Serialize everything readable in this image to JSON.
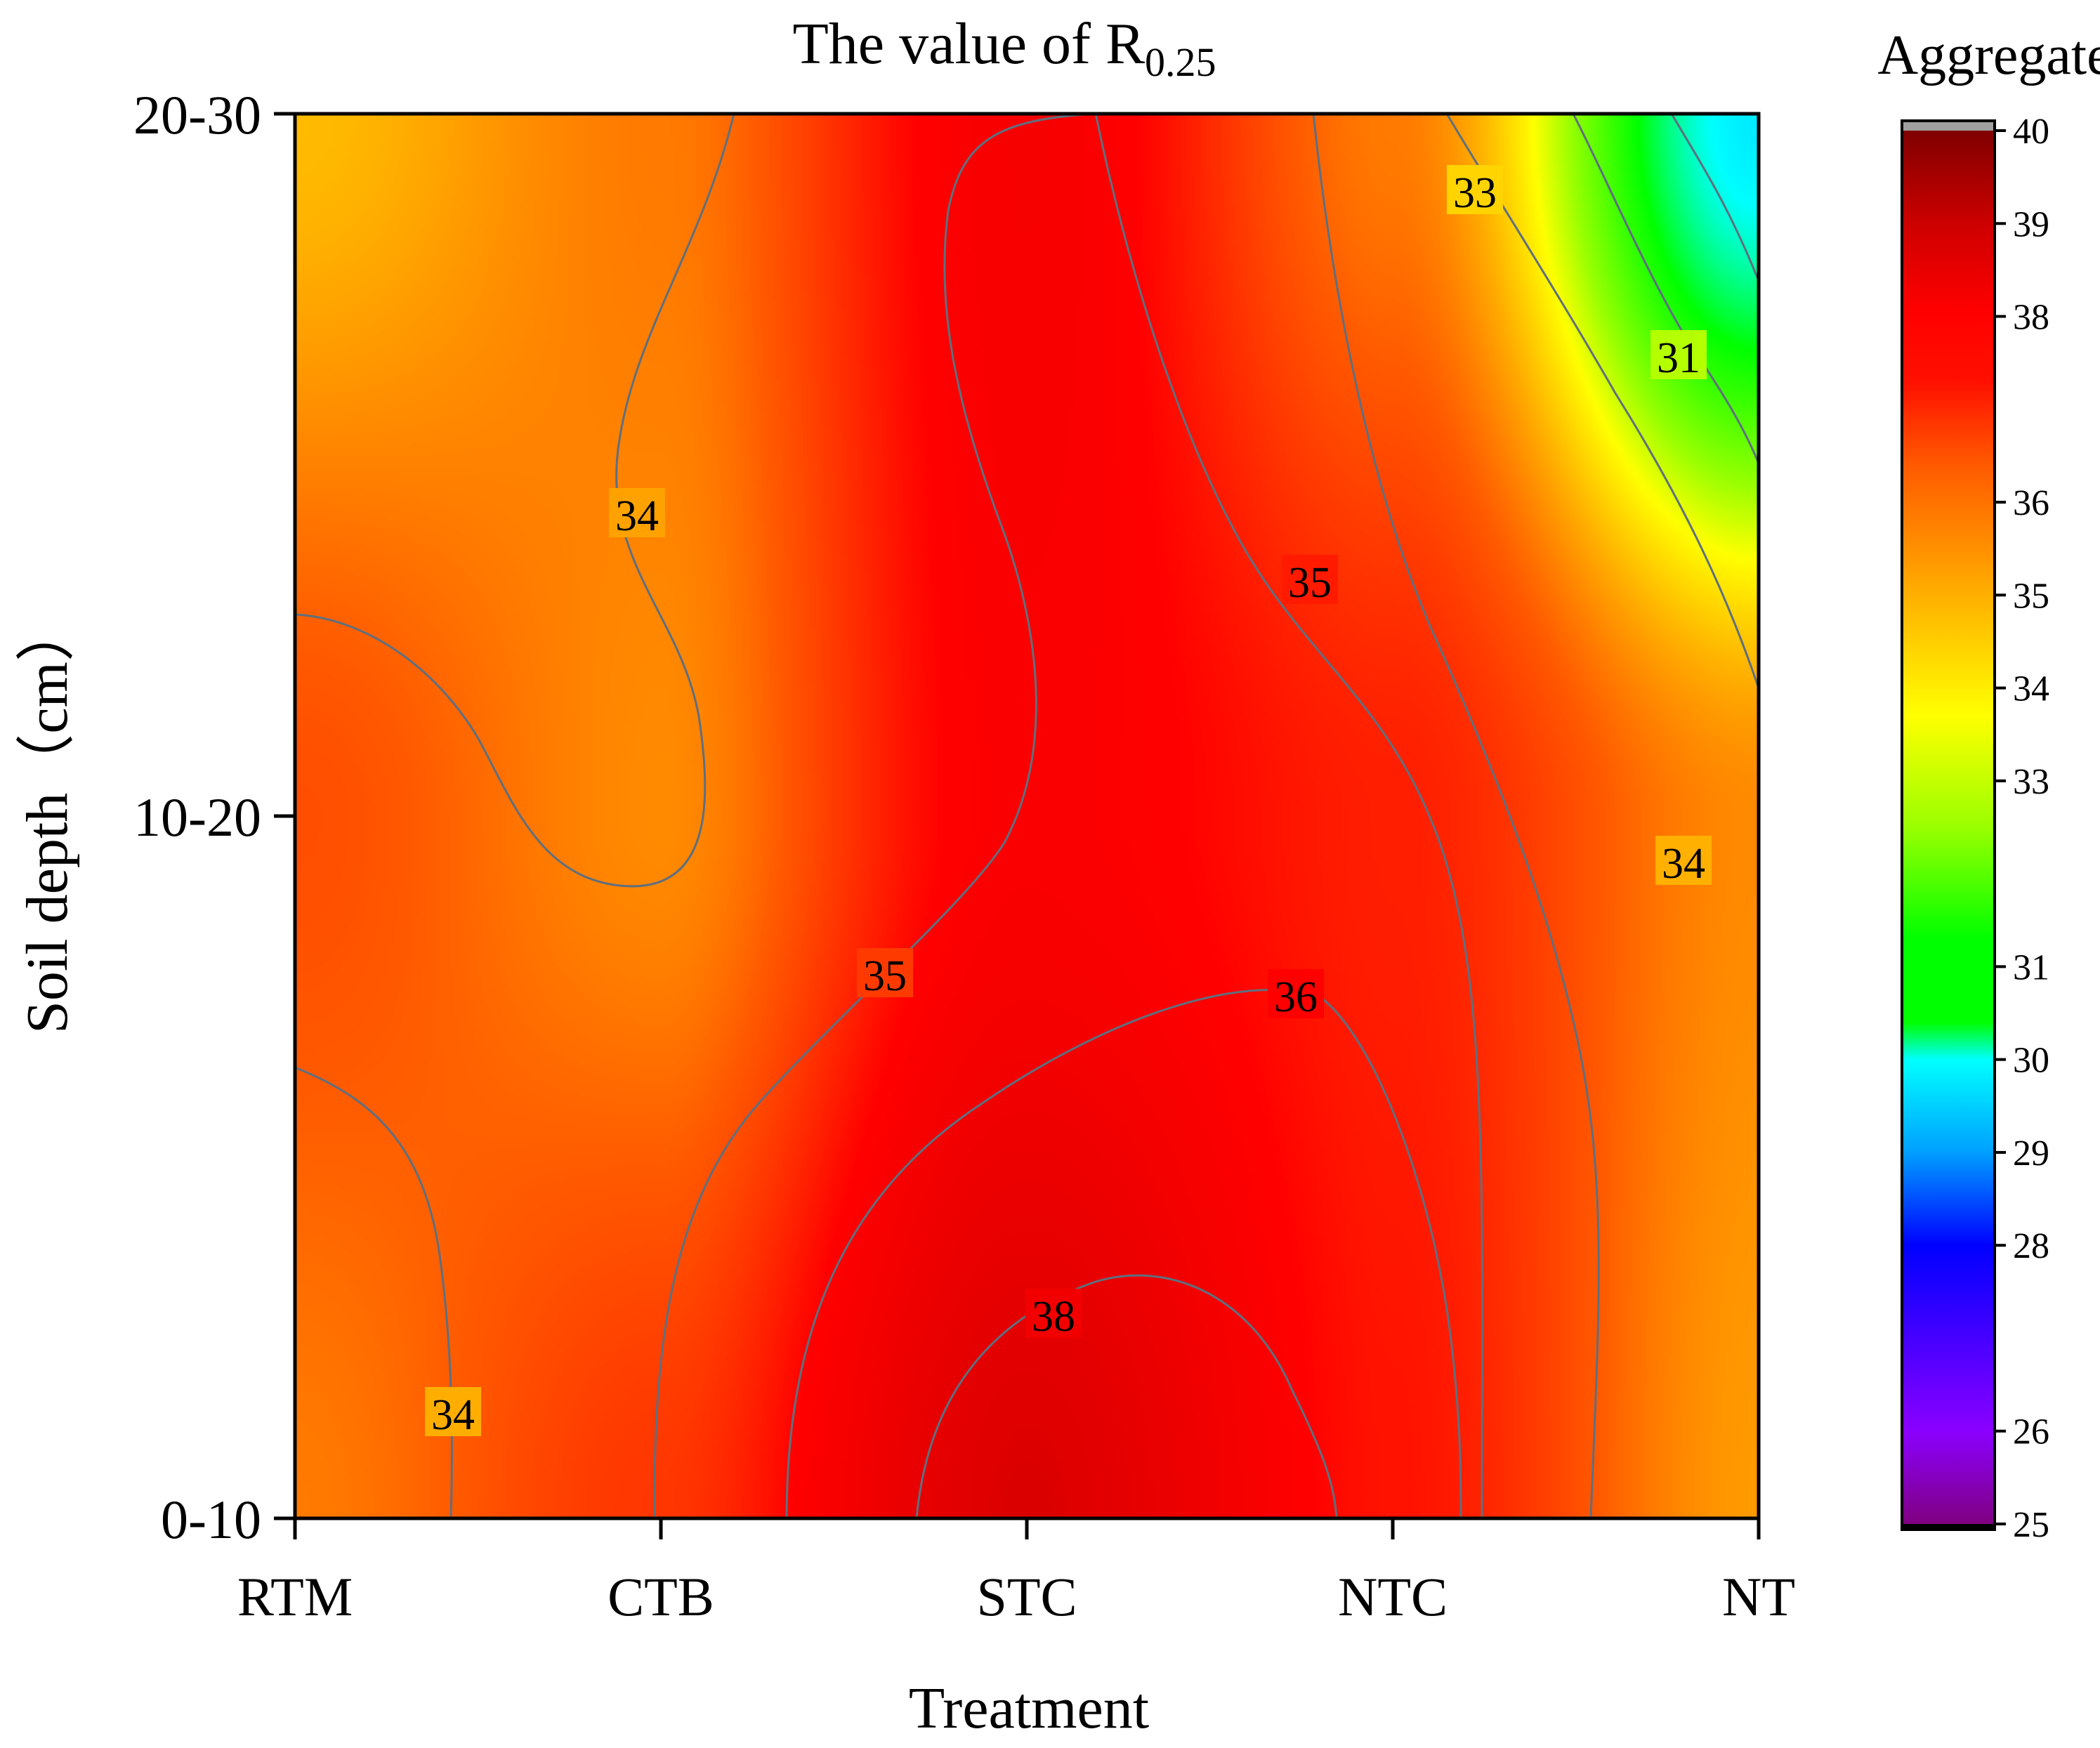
{
  "chart_data": {
    "type": "heatmap",
    "subtype": "filled-contour",
    "title": "The value of R",
    "title_subscript": "0.25",
    "xlabel": "Treatment",
    "ylabel": "Soil depth（cm）",
    "x_categories": [
      "RTM",
      "CTB",
      "STC",
      "NTC",
      "NT"
    ],
    "y_categories": [
      "0-10",
      "10-20",
      "20-30"
    ],
    "z": [
      [
        34.6,
        35.6,
        38.6,
        36.2,
        34.2
      ],
      [
        35.2,
        34.4,
        36.8,
        36.0,
        34.4
      ],
      [
        33.8,
        34.6,
        37.0,
        34.6,
        29.8
      ]
    ],
    "colorbar": {
      "title": "Aggregate",
      "range": [
        25,
        40
      ],
      "tick_labels": [
        "25",
        "26",
        "28",
        "29",
        "30",
        "31",
        "33",
        "34",
        "35",
        "36",
        "38",
        "39",
        "40"
      ],
      "colors": [
        "#800080",
        "#8a00ff",
        "#0000ff",
        "#00a0ff",
        "#00ffff",
        "#00ff00",
        "#9aff00",
        "#ffff00",
        "#ffaa00",
        "#ff5a00",
        "#ff0000",
        "#e00000",
        "#800000"
      ]
    },
    "contour_labels": [
      {
        "text": "33",
        "value": 33
      },
      {
        "text": "31",
        "value": 31
      },
      {
        "text": "34",
        "value": 34
      },
      {
        "text": "35",
        "value": 35
      },
      {
        "text": "34",
        "value": 34
      },
      {
        "text": "35",
        "value": 35
      },
      {
        "text": "36",
        "value": 36
      },
      {
        "text": "34",
        "value": 34
      },
      {
        "text": "38",
        "value": 38
      }
    ]
  }
}
